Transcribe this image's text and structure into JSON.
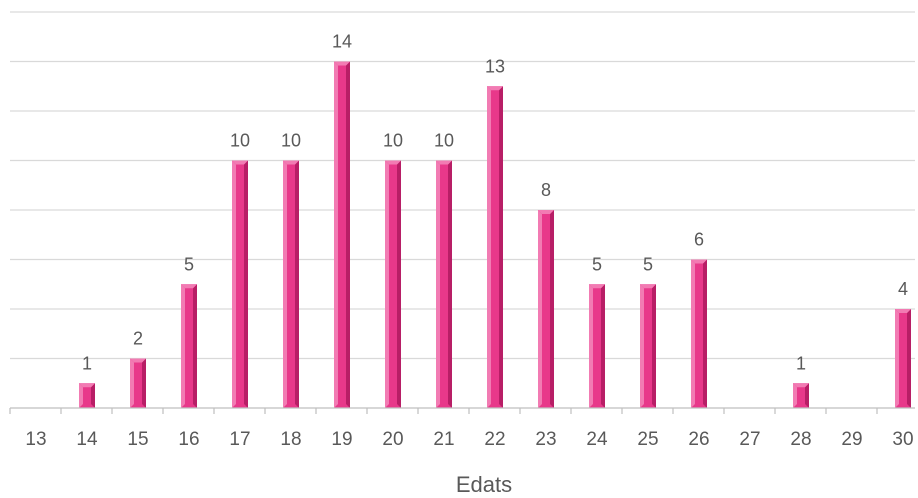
{
  "chart_data": {
    "type": "bar",
    "title": "",
    "xlabel": "Edats",
    "ylabel": "",
    "categories": [
      "13",
      "14",
      "15",
      "16",
      "17",
      "18",
      "19",
      "20",
      "21",
      "22",
      "23",
      "24",
      "25",
      "26",
      "27",
      "28",
      "29",
      "30"
    ],
    "values": [
      0,
      1,
      2,
      5,
      10,
      10,
      14,
      10,
      10,
      13,
      8,
      5,
      5,
      6,
      0,
      1,
      0,
      4
    ],
    "ylim": [
      0,
      16
    ],
    "grid": true,
    "legend": "none",
    "data_labels": true,
    "colors": {
      "bar": "#e8388a",
      "bar_light": "#f27bb3",
      "bar_dark": "#b81e66",
      "grid": "#d9d9d9",
      "axis": "#bfbfbf",
      "text": "#595959"
    }
  }
}
